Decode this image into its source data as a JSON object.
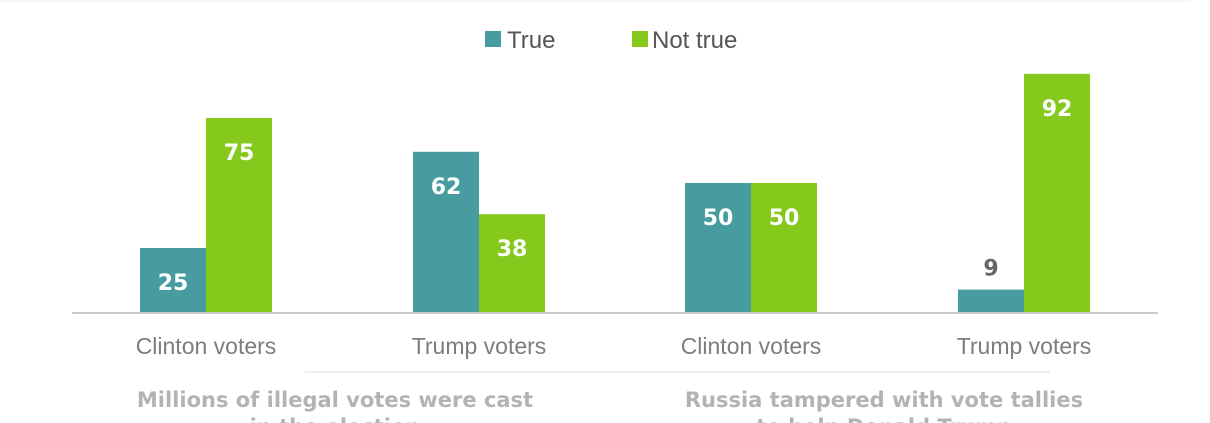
{
  "colors": {
    "true": "#469c9e",
    "not_true": "#84c91b"
  },
  "legend": [
    {
      "name": "True",
      "color": "#469c9e"
    },
    {
      "name": "Not true",
      "color": "#84c91b"
    }
  ],
  "chart_data": {
    "type": "bar",
    "categories": [
      "Clinton voters",
      "Trump voters",
      "Clinton voters",
      "Trump voters"
    ],
    "series": [
      {
        "name": "True",
        "values": [
          25,
          62,
          50,
          9
        ]
      },
      {
        "name": "Not true",
        "values": [
          75,
          38,
          50,
          92
        ]
      }
    ],
    "groups": [
      {
        "title_lines": [
          "Millions of illegal votes were cast",
          "in the election"
        ]
      },
      {
        "title_lines": [
          "Russia tampered with vote tallies",
          "to help Donald Trump"
        ]
      }
    ],
    "ylim": [
      0,
      100
    ],
    "legend_position": "top-center",
    "grid": false
  }
}
